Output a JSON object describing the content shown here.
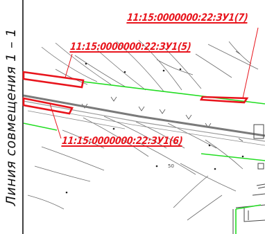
{
  "side_title": "Линия совмещения 1 – 1",
  "parcels": [
    {
      "id": "parcel-5",
      "label": "11:15:0000000:22:ЗУ1(5)"
    },
    {
      "id": "parcel-6",
      "label": "11:15:0000000:22:ЗУ1(6)"
    },
    {
      "id": "parcel-7",
      "label": "11:15:0000000:22:ЗУ1(7)"
    }
  ],
  "elevation_marks": [
    "50"
  ],
  "colors": {
    "parcel": "#e8141c",
    "boundary": "#22dd22",
    "road": "#7a7a7a",
    "contour": "#6d6d6d",
    "frame": "#111111"
  }
}
